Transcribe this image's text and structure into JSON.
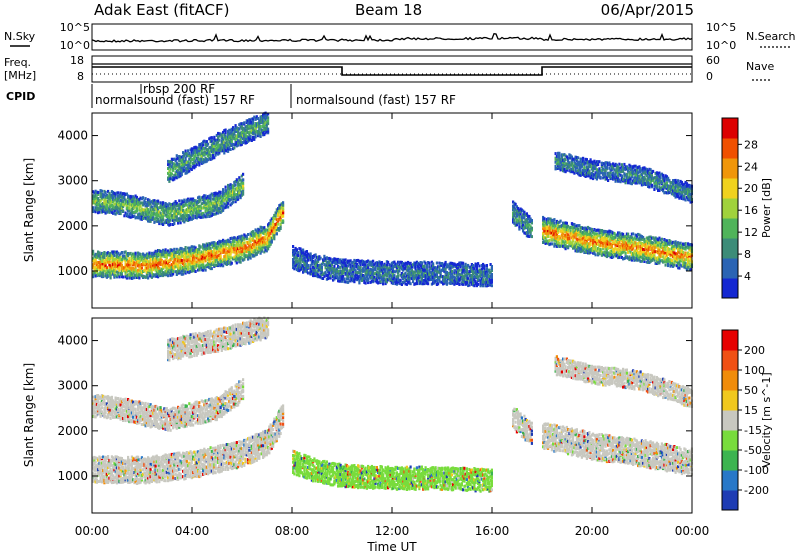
{
  "header": {
    "station": "Adak East (fitACF)",
    "beam": "Beam 18",
    "date": "06/Apr/2015"
  },
  "nsky_panel": {
    "left_label": "N.Sky",
    "right_label": "N.Search",
    "left_ticks": [
      "10^5",
      "10^0"
    ],
    "right_ticks": [
      "10^5",
      "10^0"
    ]
  },
  "freq_panel": {
    "left_label_line1": "Freq.",
    "left_label_line2": "[MHz]",
    "right_label": "Nave",
    "left_ticks": [
      "18",
      "8"
    ],
    "right_ticks": [
      "60",
      "0"
    ],
    "nave_segments": [
      {
        "start_h": 0,
        "end_h": 10,
        "level": "high"
      },
      {
        "start_h": 10,
        "end_h": 18,
        "level": "low"
      },
      {
        "start_h": 18,
        "end_h": 24,
        "level": "high"
      }
    ]
  },
  "cpid": {
    "label": "CPID",
    "segments": [
      {
        "start_h": 0,
        "end_h": 8,
        "text": "normalsound (fast) 157 RF"
      },
      {
        "start_h": 8,
        "end_h": 24,
        "text": "normalsound (fast) 157 RF"
      }
    ],
    "sub_segments": [
      {
        "start_h": 1.7,
        "end_h": 8,
        "text": "rbsp 200 RF"
      }
    ]
  },
  "chart_data": [
    {
      "type": "heatmap",
      "name": "power",
      "title": "",
      "xlabel": "",
      "ylabel": "Slant Range [km]",
      "xlim_hours": [
        0,
        24
      ],
      "ylim": [
        180,
        4500
      ],
      "ytick_values": [
        1000,
        2000,
        3000,
        4000
      ],
      "ytick_labels": [
        "1000",
        "2000",
        "3000",
        "4000"
      ],
      "colorbar": {
        "label": "Power [dB]",
        "ticks": [
          "4",
          "8",
          "12",
          "16",
          "20",
          "24",
          "28"
        ],
        "colors": [
          "#1428d2",
          "#2a64b4",
          "#3c8c78",
          "#50b45a",
          "#a0d23c",
          "#f0d21e",
          "#f0960a",
          "#f05000",
          "#dc0000"
        ]
      },
      "bands": [
        {
          "t": [
            0,
            2,
            4,
            6,
            7,
            7.6
          ],
          "r": [
            1150,
            1120,
            1250,
            1500,
            1750,
            2300
          ],
          "thick": 350,
          "intensity": 0.85
        },
        {
          "t": [
            0,
            1,
            3,
            5,
            6
          ],
          "r": [
            2550,
            2500,
            2250,
            2500,
            2900
          ],
          "thick": 250,
          "intensity": 0.45
        },
        {
          "t": [
            3,
            5,
            7
          ],
          "r": [
            3200,
            3800,
            4300
          ],
          "thick": 250,
          "intensity": 0.35
        },
        {
          "t": [
            8,
            9,
            10,
            12,
            14,
            16
          ],
          "r": [
            1300,
            1100,
            1000,
            950,
            950,
            900
          ],
          "thick": 250,
          "intensity": 0.2
        },
        {
          "t": [
            16.8,
            17.6
          ],
          "r": [
            2300,
            1900
          ],
          "thick": 250,
          "intensity": 0.3
        },
        {
          "t": [
            18,
            20,
            22,
            24
          ],
          "r": [
            1900,
            1650,
            1500,
            1300
          ],
          "thick": 350,
          "intensity": 0.85
        },
        {
          "t": [
            18.5,
            20,
            22,
            24
          ],
          "r": [
            3450,
            3250,
            3100,
            2700
          ],
          "thick": 200,
          "intensity": 0.25
        }
      ]
    },
    {
      "type": "heatmap",
      "name": "velocity",
      "title": "",
      "xlabel": "Time UT",
      "ylabel": "Slant Range [km]",
      "xlim_hours": [
        0,
        24
      ],
      "ylim": [
        180,
        4500
      ],
      "ytick_values": [
        1000,
        2000,
        3000,
        4000
      ],
      "ytick_labels": [
        "1000",
        "2000",
        "3000",
        "4000"
      ],
      "xtick_values": [
        0,
        4,
        8,
        12,
        16,
        20,
        24
      ],
      "xtick_labels": [
        "00:00",
        "04:00",
        "08:00",
        "12:00",
        "16:00",
        "20:00",
        "00:00"
      ],
      "colorbar": {
        "label": "Velocity [m s^-1]",
        "ticks": [
          "200",
          "100",
          "50",
          "15",
          "-15",
          "-50",
          "-100",
          "-200"
        ],
        "colors": [
          "#1e3cb4",
          "#2878c8",
          "#3cb450",
          "#78dc3c",
          "#c8c8c0",
          "#f0c81e",
          "#f08c0a",
          "#f05014",
          "#e60000"
        ]
      },
      "bands": [
        {
          "t": [
            0,
            2,
            4,
            6,
            7,
            7.6
          ],
          "r": [
            1150,
            1120,
            1250,
            1500,
            1750,
            2300
          ],
          "thick": 350,
          "intensity": 0.5
        },
        {
          "t": [
            0,
            1,
            3,
            5,
            6
          ],
          "r": [
            2550,
            2500,
            2250,
            2500,
            2900
          ],
          "thick": 250,
          "intensity": 0.5
        },
        {
          "t": [
            3,
            5,
            7
          ],
          "r": [
            3800,
            4000,
            4300
          ],
          "thick": 250,
          "intensity": 0.6
        },
        {
          "t": [
            8,
            9,
            10,
            12,
            14,
            16
          ],
          "r": [
            1300,
            1100,
            1000,
            950,
            950,
            900
          ],
          "thick": 250,
          "intensity": 0.22
        },
        {
          "t": [
            16.8,
            17.6
          ],
          "r": [
            2300,
            1900
          ],
          "thick": 250,
          "intensity": 0.35
        },
        {
          "t": [
            18,
            20,
            22,
            24
          ],
          "r": [
            1900,
            1650,
            1500,
            1300
          ],
          "thick": 350,
          "intensity": 0.5
        },
        {
          "t": [
            18.5,
            20,
            22,
            24
          ],
          "r": [
            3450,
            3250,
            3100,
            2700
          ],
          "thick": 200,
          "intensity": 0.5
        }
      ]
    }
  ]
}
